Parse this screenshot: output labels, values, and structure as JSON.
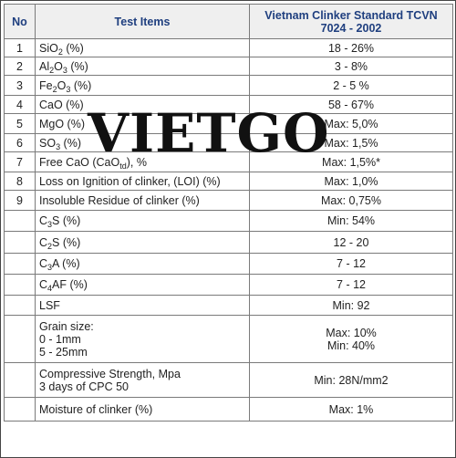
{
  "header": {
    "no": "No",
    "items": "Test Items",
    "standard": "Vietnam Clinker Standard TCVN 7024 - 2002"
  },
  "rows": [
    {
      "no": "1",
      "pre": "SiO",
      "sub": "2",
      "post": " (%)",
      "value": "18 - 26%"
    },
    {
      "no": "2",
      "pre": "Al",
      "sub": "2",
      "mid": "O",
      "sub2": "3",
      "post": " (%)",
      "value": "3 - 8%"
    },
    {
      "no": "3",
      "pre": "Fe",
      "sub": "2",
      "mid": "O",
      "sub2": "3",
      "post": " (%)",
      "value": "2 - 5 %"
    },
    {
      "no": "4",
      "pre": "CaO (%)",
      "value": "58 -  67%"
    },
    {
      "no": "5",
      "pre": "MgO (%)",
      "value": "Max: 5,0%"
    },
    {
      "no": "6",
      "pre": "SO",
      "sub": "3",
      "post": " (%)",
      "value": "Max: 1,5%"
    },
    {
      "no": "7",
      "pre": "Free CaO (CaO",
      "sub": "td",
      "post": "), %",
      "value": "Max: 1,5%*"
    },
    {
      "no": "8",
      "pre": "Loss on Ignition of clinker, (LOI)  (%)",
      "value": "Max: 1,0%"
    },
    {
      "no": "9",
      "pre": "Insoluble Residue of clinker (%)",
      "value": "Max: 0,75%"
    },
    {
      "no": "",
      "pre": "C",
      "sub": "3",
      "post": "S (%)",
      "value": "Min: 54%"
    },
    {
      "no": "",
      "pre": "C",
      "sub": "2",
      "post": "S (%)",
      "value": "12 - 20"
    },
    {
      "no": "",
      "pre": "C",
      "sub": "3",
      "post": "A (%)",
      "value": "7 - 12"
    },
    {
      "no": "",
      "pre": "C",
      "sub": "4",
      "post": "AF (%)",
      "value": "7 - 12"
    },
    {
      "no": "",
      "pre": "LSF",
      "value": "Min: 92"
    }
  ],
  "grain": {
    "label": "Grain size:",
    "line1": "0 - 1mm",
    "line2": "5 - 25mm",
    "value1": "Max: 10%",
    "value2": "Min: 40%"
  },
  "strength": {
    "label": "Compressive Strength, Mpa",
    "line2": "3 days of CPC 50",
    "value": "Min: 28N/mm2"
  },
  "moisture": {
    "label": "Moisture of clinker (%)",
    "value": "Max: 1%"
  },
  "watermark": "VIETGO"
}
